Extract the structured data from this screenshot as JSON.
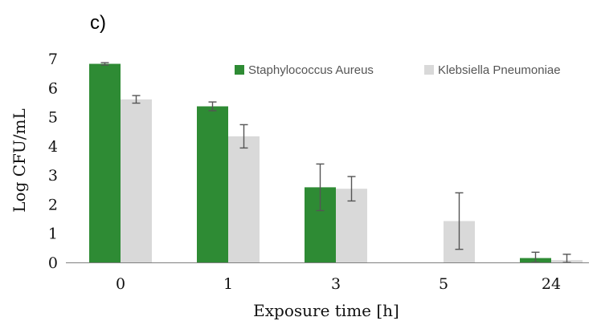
{
  "panel_label": "c)",
  "colors": {
    "series_1": "#2e8b34",
    "series_2": "#d9d9d9",
    "axis": "#7f7f7f",
    "error_bar": "#555555"
  },
  "chart_data": {
    "type": "bar",
    "title": "",
    "xlabel": "Exposure time [h]",
    "ylabel": "Log CFU/mL",
    "ylim": [
      0,
      7
    ],
    "yticks": [
      0,
      1,
      2,
      3,
      4,
      5,
      6,
      7
    ],
    "categories": [
      "0",
      "1",
      "3",
      "5",
      "24"
    ],
    "legend_position": "top-right",
    "grid": false,
    "series": [
      {
        "name": "Staphylococcus Aureus",
        "values": [
          6.82,
          5.36,
          2.58,
          0,
          0.15
        ],
        "errors": [
          0.04,
          0.15,
          0.8,
          0,
          0.2
        ]
      },
      {
        "name": "Klebsiella Pneumoniae",
        "values": [
          5.6,
          4.33,
          2.53,
          1.42,
          0.08
        ],
        "errors": [
          0.13,
          0.4,
          0.42,
          0.97,
          0.2
        ]
      }
    ]
  }
}
